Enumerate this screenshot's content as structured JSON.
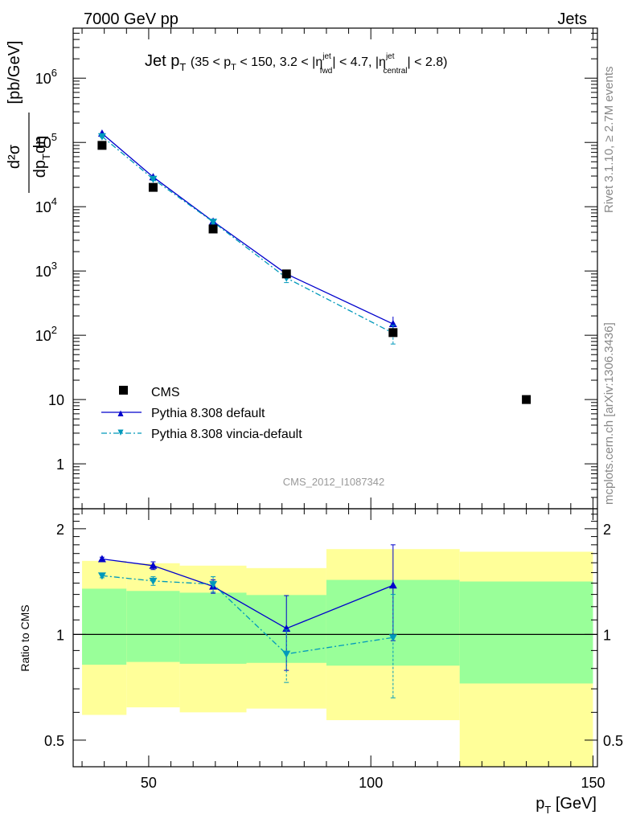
{
  "header": {
    "energy_label": "7000 GeV pp",
    "category_label": "Jets"
  },
  "side_text": {
    "rivet": "Rivet 3.1.10, ≥ 2.7M events",
    "mcplots": "mcplots.cern.ch [arXiv:1306.3436]"
  },
  "plot_title": {
    "main": "Jet p",
    "main_sub": "T",
    "range_prefix": "(35 < p",
    "range_sub1": "T",
    "range_mid1": " < 150, 3.2 < |η",
    "eta1_sup": "jet",
    "eta1_sub": "fwd",
    "range_mid2": "| < 4.7, |η",
    "eta2_sup": "jet",
    "eta2_sub": "central",
    "range_end": "| < 2.8)"
  },
  "watermark": "CMS_2012_I1087342",
  "chart_data": [
    {
      "type": "line",
      "panel": "main",
      "title": "Jet pT (35 < pT < 150, 3.2 < |ηjet fwd| < 4.7, |ηjet central| < 2.8)",
      "xlabel": "p_T [GeV]",
      "ylabel": "d²σ / dp_T dη [pb/GeV]",
      "xlim": [
        33,
        151
      ],
      "ylim": [
        0.2,
        6000000
      ],
      "yscale": "log",
      "x_ticks": [
        50,
        100,
        150
      ],
      "y_ticks": [
        {
          "value": 1,
          "label": "1"
        },
        {
          "value": 10,
          "label": "10"
        },
        {
          "value": 100,
          "label": "10",
          "sup": "2"
        },
        {
          "value": 1000,
          "label": "10",
          "sup": "3"
        },
        {
          "value": 10000,
          "label": "10",
          "sup": "4"
        },
        {
          "value": 100000,
          "label": "10",
          "sup": "5"
        },
        {
          "value": 1000000,
          "label": "10",
          "sup": "6"
        }
      ],
      "ylabel_parts": {
        "top": "d²σ",
        "bottom": "dp",
        "bottom_sub": "T",
        "bottom_end": "dη",
        "unit": "[pb/GeV]"
      },
      "legend_position": "bottom-left",
      "series": [
        {
          "name": "CMS",
          "style": "square",
          "color": "#000000",
          "points": [
            {
              "x": 39.5,
              "y": 90000,
              "xerr": [
                35,
                45
              ]
            },
            {
              "x": 51.0,
              "y": 20000,
              "xerr": [
                45,
                57
              ]
            },
            {
              "x": 64.5,
              "y": 4500,
              "xerr": [
                57,
                72
              ]
            },
            {
              "x": 81.0,
              "y": 900,
              "xerr": [
                72,
                90
              ]
            },
            {
              "x": 105.0,
              "y": 110,
              "xerr": [
                90,
                120
              ]
            },
            {
              "x": 135.0,
              "y": 10,
              "xerr": [
                120,
                150
              ]
            }
          ]
        },
        {
          "name": "Pythia 8.308 default",
          "style": "triangle-up",
          "line": "solid",
          "color": "#0000cc",
          "points": [
            {
              "x": 39.5,
              "y": 138000,
              "err": 4000
            },
            {
              "x": 51.0,
              "y": 29000,
              "err": 1500
            },
            {
              "x": 64.5,
              "y": 5900,
              "err": 400
            },
            {
              "x": 81.0,
              "y": 900,
              "err": 100
            },
            {
              "x": 105.0,
              "y": 150,
              "err": 45
            }
          ]
        },
        {
          "name": "Pythia 8.308 vincia-default",
          "style": "triangle-down",
          "line": "dash-dot",
          "color": "#0099bb",
          "points": [
            {
              "x": 39.5,
              "y": 124000,
              "err": 4000
            },
            {
              "x": 51.0,
              "y": 27000,
              "err": 1500
            },
            {
              "x": 64.5,
              "y": 5800,
              "err": 400
            },
            {
              "x": 81.0,
              "y": 780,
              "err": 120
            },
            {
              "x": 105.0,
              "y": 108,
              "err": 35
            }
          ]
        }
      ]
    },
    {
      "type": "line",
      "panel": "ratio",
      "xlabel": "p_T [GeV]",
      "ylabel": "Ratio to CMS",
      "xlim": [
        33,
        151
      ],
      "ylim": [
        0.42,
        2.28
      ],
      "yscale": "log",
      "y_ticks": [
        0.5,
        1,
        2
      ],
      "reference_line": 1,
      "bands": [
        {
          "x0": 35,
          "x1": 45,
          "inner": [
            0.82,
            1.35
          ],
          "outer": [
            0.59,
            1.62
          ]
        },
        {
          "x0": 45,
          "x1": 57,
          "inner": [
            0.835,
            1.33
          ],
          "outer": [
            0.62,
            1.595
          ]
        },
        {
          "x0": 57,
          "x1": 72,
          "inner": [
            0.825,
            1.315
          ],
          "outer": [
            0.6,
            1.57
          ]
        },
        {
          "x0": 72,
          "x1": 90,
          "inner": [
            0.83,
            1.295
          ],
          "outer": [
            0.615,
            1.545
          ]
        },
        {
          "x0": 90,
          "x1": 120,
          "inner": [
            0.815,
            1.43
          ],
          "outer": [
            0.57,
            1.75
          ]
        },
        {
          "x0": 120,
          "x1": 150,
          "inner": [
            0.725,
            1.415
          ],
          "outer": [
            0.42,
            1.72
          ]
        }
      ],
      "series": [
        {
          "name": "Pythia 8.308 default",
          "color": "#0000cc",
          "points": [
            {
              "x": 39.5,
              "y": 1.64,
              "err": 0.02
            },
            {
              "x": 51.0,
              "y": 1.57,
              "err": 0.04
            },
            {
              "x": 64.5,
              "y": 1.37,
              "err": 0.06
            },
            {
              "x": 81.0,
              "y": 1.04,
              "err": 0.25
            },
            {
              "x": 105.0,
              "y": 1.38,
              "err": 0.42
            }
          ]
        },
        {
          "name": "Pythia 8.308 vincia-default",
          "color": "#0099bb",
          "points": [
            {
              "x": 39.5,
              "y": 1.47,
              "err": 0.02
            },
            {
              "x": 51.0,
              "y": 1.42,
              "err": 0.04
            },
            {
              "x": 64.5,
              "y": 1.39,
              "err": 0.07
            },
            {
              "x": 81.0,
              "y": 0.88,
              "err": 0.15
            },
            {
              "x": 105.0,
              "y": 0.98,
              "err": 0.32
            }
          ]
        }
      ]
    }
  ],
  "colors": {
    "band_inner": "#99ff99",
    "band_outer": "#ffff99",
    "frame": "#000000",
    "side_text": "#888888",
    "watermark": "#999999"
  }
}
